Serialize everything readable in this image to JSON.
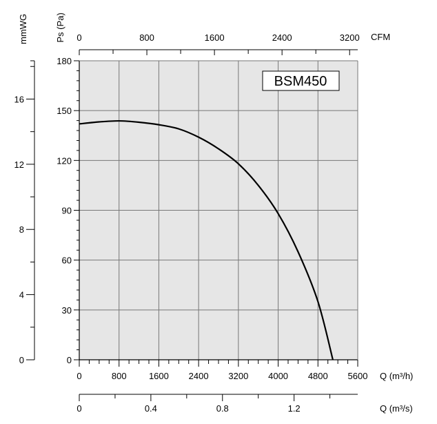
{
  "chart_data": {
    "type": "line",
    "title": "BSM450",
    "x": [
      0,
      400,
      800,
      1200,
      1600,
      2000,
      2400,
      2800,
      3200,
      3600,
      4000,
      4400,
      4800,
      5100
    ],
    "series": [
      {
        "name": "BSM450",
        "values": [
          142,
          143.2,
          143.8,
          143,
          141.5,
          139,
          134,
          127,
          118,
          105,
          88,
          65,
          35,
          0
        ]
      }
    ],
    "xlim": [
      0,
      5600
    ],
    "ylim": [
      0,
      180
    ],
    "grid": true,
    "axes": {
      "pressure": {
        "label": "Ps (Pa)",
        "ticks": [
          "0",
          "30",
          "60",
          "90",
          "120",
          "150",
          "180"
        ]
      },
      "mmwg": {
        "label": "mmWG",
        "ticks": [
          "0",
          "4",
          "8",
          "12",
          "16"
        ],
        "max": 18.35
      },
      "flow_m3h": {
        "label": "Q (m³/h)",
        "ticks": [
          "0",
          "800",
          "1600",
          "2400",
          "3200",
          "4000",
          "4800",
          "5600"
        ]
      },
      "cfm": {
        "label": "CFM",
        "ticks": [
          "0",
          "800",
          "1600",
          "2400",
          "3200"
        ],
        "max": 3296
      },
      "flow_m3s": {
        "label": "Q (m³/s)",
        "ticks": [
          "0",
          "0.4",
          "0.8",
          "1.2"
        ],
        "max": 1.5556
      }
    }
  }
}
